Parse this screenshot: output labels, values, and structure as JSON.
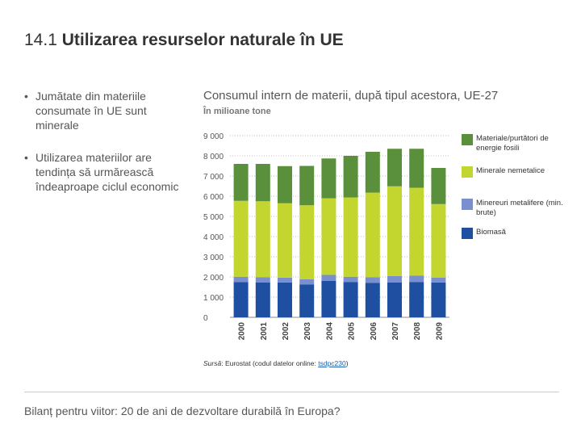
{
  "slide": {
    "number": "14.1",
    "title": "Utilizarea resurselor naturale în UE",
    "bullets": [
      "Jumătate din materiile consumate în UE sunt minerale",
      "Utilizarea materiilor are tendința să urmărească îndeaproape ciclul economic"
    ],
    "footer": "Bilanț pentru viitor: 20 de ani de dezvoltare durabilă în Europa?"
  },
  "source": {
    "label": "Sursă",
    "text": ": Eurostat (codul datelor online: ",
    "code": "tsdpc230",
    "close": ")"
  },
  "chart_data": {
    "type": "bar",
    "stacked": true,
    "title": "Consumul intern de materii, după tipul acestora, UE-27",
    "unit": "În milioane tone",
    "categories": [
      "2000",
      "2001",
      "2002",
      "2003",
      "2004",
      "2005",
      "2006",
      "2007",
      "2008",
      "2009"
    ],
    "ylim": [
      0,
      9000
    ],
    "yticks": [
      0,
      1000,
      2000,
      3000,
      4000,
      5000,
      6000,
      7000,
      8000,
      9000
    ],
    "ytick_labels": [
      "0",
      "1 000",
      "2 000",
      "3 000",
      "4 000",
      "5 000",
      "6 000",
      "7 000",
      "8 000",
      "9 000"
    ],
    "grid": true,
    "legend": "right",
    "series": [
      {
        "name": "Biomasă",
        "color": "#1f4fa0",
        "values": [
          1750,
          1720,
          1730,
          1620,
          1800,
          1740,
          1700,
          1720,
          1740,
          1730
        ]
      },
      {
        "name": "Minereuri metalifere (min. brute)",
        "color": "#7a8fd0",
        "values": [
          260,
          260,
          240,
          260,
          300,
          270,
          280,
          320,
          320,
          230
        ]
      },
      {
        "name": "Minerale nemetalice",
        "color": "#c3d62f",
        "values": [
          3760,
          3770,
          3680,
          3670,
          3800,
          3930,
          4200,
          4450,
          4360,
          3650
        ]
      },
      {
        "name": "Materiale/purtători de energie fosili",
        "color": "#5a8f3c",
        "values": [
          1830,
          1850,
          1840,
          1950,
          1970,
          2060,
          2020,
          1860,
          1930,
          1790
        ]
      }
    ]
  }
}
